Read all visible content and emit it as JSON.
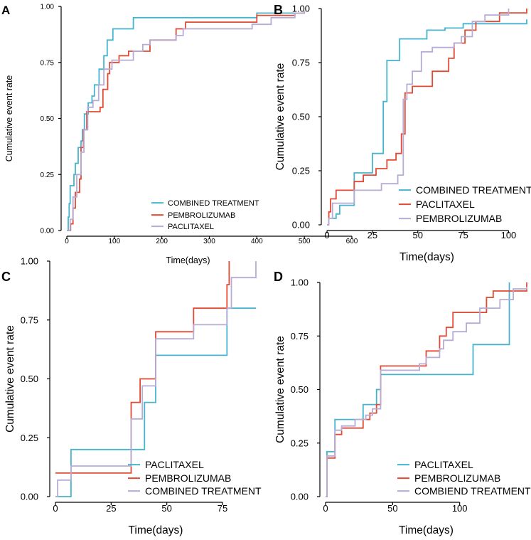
{
  "chart_data": [
    {
      "panel": "A",
      "type": "line",
      "step": true,
      "xlabel": "Time(days)",
      "ylabel": "Cumulative event rate",
      "xlim": [
        0,
        600
      ],
      "ylim": [
        0,
        1
      ],
      "xticks": [
        0,
        100,
        200,
        300,
        400,
        500,
        600
      ],
      "yticks": [
        0,
        0.25,
        0.5,
        0.75,
        1
      ],
      "xtick_labels": [
        "0",
        "100",
        "200",
        "300",
        "400",
        "500",
        "600"
      ],
      "ytick_labels": [
        "0.00",
        "0.25",
        "0.50",
        "0.75",
        "1.00"
      ],
      "legend_position": "bottom-right",
      "series": [
        {
          "name": "COMBINED TREATMENT",
          "color": "#45B4CC",
          "points": [
            [
              0,
              0
            ],
            [
              3,
              0.06
            ],
            [
              5,
              0.12
            ],
            [
              7,
              0.2
            ],
            [
              15,
              0.25
            ],
            [
              18,
              0.3
            ],
            [
              24,
              0.37
            ],
            [
              30,
              0.4
            ],
            [
              33,
              0.45
            ],
            [
              37,
              0.52
            ],
            [
              45,
              0.57
            ],
            [
              53,
              0.6
            ],
            [
              58,
              0.65
            ],
            [
              68,
              0.72
            ],
            [
              78,
              0.78
            ],
            [
              85,
              0.85
            ],
            [
              97,
              0.9
            ],
            [
              140,
              0.95
            ],
            [
              400,
              0.97
            ],
            [
              500,
              0.97
            ]
          ]
        },
        {
          "name": "PEMBROLIZUMAB",
          "color": "#E24A33",
          "points": [
            [
              0,
              0
            ],
            [
              8,
              0.03
            ],
            [
              13,
              0.1
            ],
            [
              18,
              0.17
            ],
            [
              27,
              0.23
            ],
            [
              30,
              0.37
            ],
            [
              35,
              0.45
            ],
            [
              42,
              0.53
            ],
            [
              70,
              0.55
            ],
            [
              76,
              0.63
            ],
            [
              86,
              0.7
            ],
            [
              90,
              0.75
            ],
            [
              110,
              0.78
            ],
            [
              130,
              0.8
            ],
            [
              175,
              0.85
            ],
            [
              230,
              0.9
            ],
            [
              250,
              0.93
            ],
            [
              400,
              0.96
            ],
            [
              480,
              0.97
            ],
            [
              500,
              0.98
            ]
          ]
        },
        {
          "name": "PACLITAXEL",
          "color": "#B7ACD6",
          "points": [
            [
              0,
              0
            ],
            [
              7,
              0.05
            ],
            [
              13,
              0.15
            ],
            [
              21,
              0.25
            ],
            [
              30,
              0.35
            ],
            [
              36,
              0.45
            ],
            [
              44,
              0.55
            ],
            [
              55,
              0.58
            ],
            [
              67,
              0.65
            ],
            [
              78,
              0.72
            ],
            [
              95,
              0.76
            ],
            [
              140,
              0.8
            ],
            [
              160,
              0.83
            ],
            [
              175,
              0.85
            ],
            [
              230,
              0.87
            ],
            [
              245,
              0.9
            ],
            [
              390,
              0.92
            ],
            [
              430,
              0.95
            ],
            [
              480,
              0.97
            ],
            [
              500,
              0.98
            ]
          ]
        }
      ]
    },
    {
      "panel": "B",
      "type": "line",
      "step": true,
      "xlabel": "Time(days)",
      "ylabel": "Cumulative event rate",
      "xlim": [
        0,
        110
      ],
      "ylim": [
        0,
        1
      ],
      "xticks": [
        0,
        25,
        50,
        75,
        100
      ],
      "yticks": [
        0,
        0.25,
        0.5,
        0.75,
        1
      ],
      "xtick_labels": [
        "0",
        "25",
        "50",
        "75",
        "100"
      ],
      "ytick_labels": [
        "0.00",
        "0.25",
        "0.50",
        "0.75",
        "1.00"
      ],
      "legend_position": "bottom-right",
      "series": [
        {
          "name": "COMBINED TREATMENT",
          "color": "#45B4CC",
          "points": [
            [
              0,
              0
            ],
            [
              1,
              0.03
            ],
            [
              5,
              0.05
            ],
            [
              7,
              0.09
            ],
            [
              15,
              0.24
            ],
            [
              25,
              0.33
            ],
            [
              31,
              0.57
            ],
            [
              33,
              0.76
            ],
            [
              40,
              0.86
            ],
            [
              55,
              0.9
            ],
            [
              65,
              0.91
            ],
            [
              75,
              0.93
            ],
            [
              110,
              0.95
            ]
          ]
        },
        {
          "name": "PACLITAXEL",
          "color": "#E24A33",
          "points": [
            [
              0,
              0
            ],
            [
              1,
              0.06
            ],
            [
              2,
              0.12
            ],
            [
              5,
              0.16
            ],
            [
              15,
              0.2
            ],
            [
              20,
              0.23
            ],
            [
              27,
              0.26
            ],
            [
              33,
              0.3
            ],
            [
              38,
              0.33
            ],
            [
              41,
              0.42
            ],
            [
              43,
              0.61
            ],
            [
              47,
              0.64
            ],
            [
              58,
              0.71
            ],
            [
              67,
              0.77
            ],
            [
              70,
              0.84
            ],
            [
              76,
              0.9
            ],
            [
              82,
              0.94
            ],
            [
              95,
              0.98
            ],
            [
              110,
              1.0
            ]
          ]
        },
        {
          "name": "PEMBROLIZUMAB",
          "color": "#B7ACD6",
          "points": [
            [
              0,
              0
            ],
            [
              1,
              0.03
            ],
            [
              3,
              0.1
            ],
            [
              15,
              0.16
            ],
            [
              30,
              0.19
            ],
            [
              39,
              0.23
            ],
            [
              42,
              0.58
            ],
            [
              44,
              0.65
            ],
            [
              47,
              0.71
            ],
            [
              52,
              0.8
            ],
            [
              58,
              0.82
            ],
            [
              70,
              0.84
            ],
            [
              74,
              0.87
            ],
            [
              80,
              0.94
            ],
            [
              87,
              0.97
            ],
            [
              100,
              1.0
            ]
          ]
        }
      ]
    },
    {
      "panel": "C",
      "type": "line",
      "step": true,
      "xlabel": "Time(days)",
      "ylabel": "Cumulative event rate",
      "xlim": [
        0,
        90
      ],
      "ylim": [
        0,
        1
      ],
      "xticks": [
        0,
        25,
        50,
        75
      ],
      "yticks": [
        0,
        0.25,
        0.5,
        0.75,
        1
      ],
      "xtick_labels": [
        "0",
        "25",
        "50",
        "75"
      ],
      "ytick_labels": [
        "0.00",
        "0.25",
        "0.50",
        "0.75",
        "1.00"
      ],
      "legend_position": "bottom-right",
      "series": [
        {
          "name": "PACLITAXEL",
          "color": "#45B4CC",
          "points": [
            [
              0,
              0
            ],
            [
              7,
              0.2
            ],
            [
              40,
              0.4
            ],
            [
              45,
              0.6
            ],
            [
              77,
              0.8
            ],
            [
              90,
              0.8
            ]
          ]
        },
        {
          "name": "PEMBROLIZUMAB",
          "color": "#E24A33",
          "points": [
            [
              0,
              0.1
            ],
            [
              34,
              0.4
            ],
            [
              38,
              0.5
            ],
            [
              45,
              0.7
            ],
            [
              62,
              0.8
            ],
            [
              77,
              0.9
            ],
            [
              78,
              1.0
            ]
          ]
        },
        {
          "name": "COMBINED TREATMENT",
          "color": "#B7ACD6",
          "points": [
            [
              0,
              0
            ],
            [
              1,
              0.07
            ],
            [
              7,
              0.13
            ],
            [
              34,
              0.33
            ],
            [
              39,
              0.47
            ],
            [
              45,
              0.67
            ],
            [
              62,
              0.73
            ],
            [
              77,
              0.8
            ],
            [
              79,
              0.93
            ],
            [
              90,
              1.0
            ]
          ]
        }
      ]
    },
    {
      "panel": "D",
      "type": "line",
      "step": true,
      "xlabel": "Time(days)",
      "ylabel": "Cumulative event rate",
      "xlim": [
        0,
        150
      ],
      "ylim": [
        0,
        1
      ],
      "xticks": [
        0,
        50,
        100
      ],
      "yticks": [
        0,
        0.25,
        0.5,
        0.75,
        1
      ],
      "xtick_labels": [
        "0",
        "50",
        "100"
      ],
      "ytick_labels": [
        "0.00",
        "0.25",
        "0.50",
        "0.75",
        "1.00"
      ],
      "legend_position": "bottom-right",
      "series": [
        {
          "name": "PACLITAXEL",
          "color": "#45B4CC",
          "points": [
            [
              0,
              0
            ],
            [
              1,
              0.21
            ],
            [
              7,
              0.36
            ],
            [
              28,
              0.43
            ],
            [
              38,
              0.5
            ],
            [
              41,
              0.57
            ],
            [
              110,
              0.71
            ],
            [
              137,
              1.0
            ]
          ]
        },
        {
          "name": "PEMBROLIZUMAB",
          "color": "#E24A33",
          "points": [
            [
              0,
              0
            ],
            [
              1,
              0.18
            ],
            [
              7,
              0.29
            ],
            [
              12,
              0.32
            ],
            [
              28,
              0.36
            ],
            [
              33,
              0.39
            ],
            [
              38,
              0.43
            ],
            [
              41,
              0.61
            ],
            [
              75,
              0.68
            ],
            [
              85,
              0.75
            ],
            [
              90,
              0.79
            ],
            [
              95,
              0.86
            ],
            [
              120,
              0.93
            ],
            [
              125,
              0.96
            ],
            [
              150,
              1.0
            ]
          ]
        },
        {
          "name": "COMBIEND TREATMENT",
          "color": "#B7ACD6",
          "points": [
            [
              0,
              0
            ],
            [
              1,
              0.19
            ],
            [
              7,
              0.31
            ],
            [
              12,
              0.33
            ],
            [
              22,
              0.36
            ],
            [
              30,
              0.38
            ],
            [
              35,
              0.41
            ],
            [
              41,
              0.59
            ],
            [
              70,
              0.62
            ],
            [
              75,
              0.65
            ],
            [
              85,
              0.69
            ],
            [
              88,
              0.73
            ],
            [
              95,
              0.77
            ],
            [
              105,
              0.81
            ],
            [
              115,
              0.88
            ],
            [
              130,
              0.92
            ],
            [
              140,
              0.97
            ],
            [
              150,
              0.98
            ]
          ]
        }
      ]
    }
  ]
}
